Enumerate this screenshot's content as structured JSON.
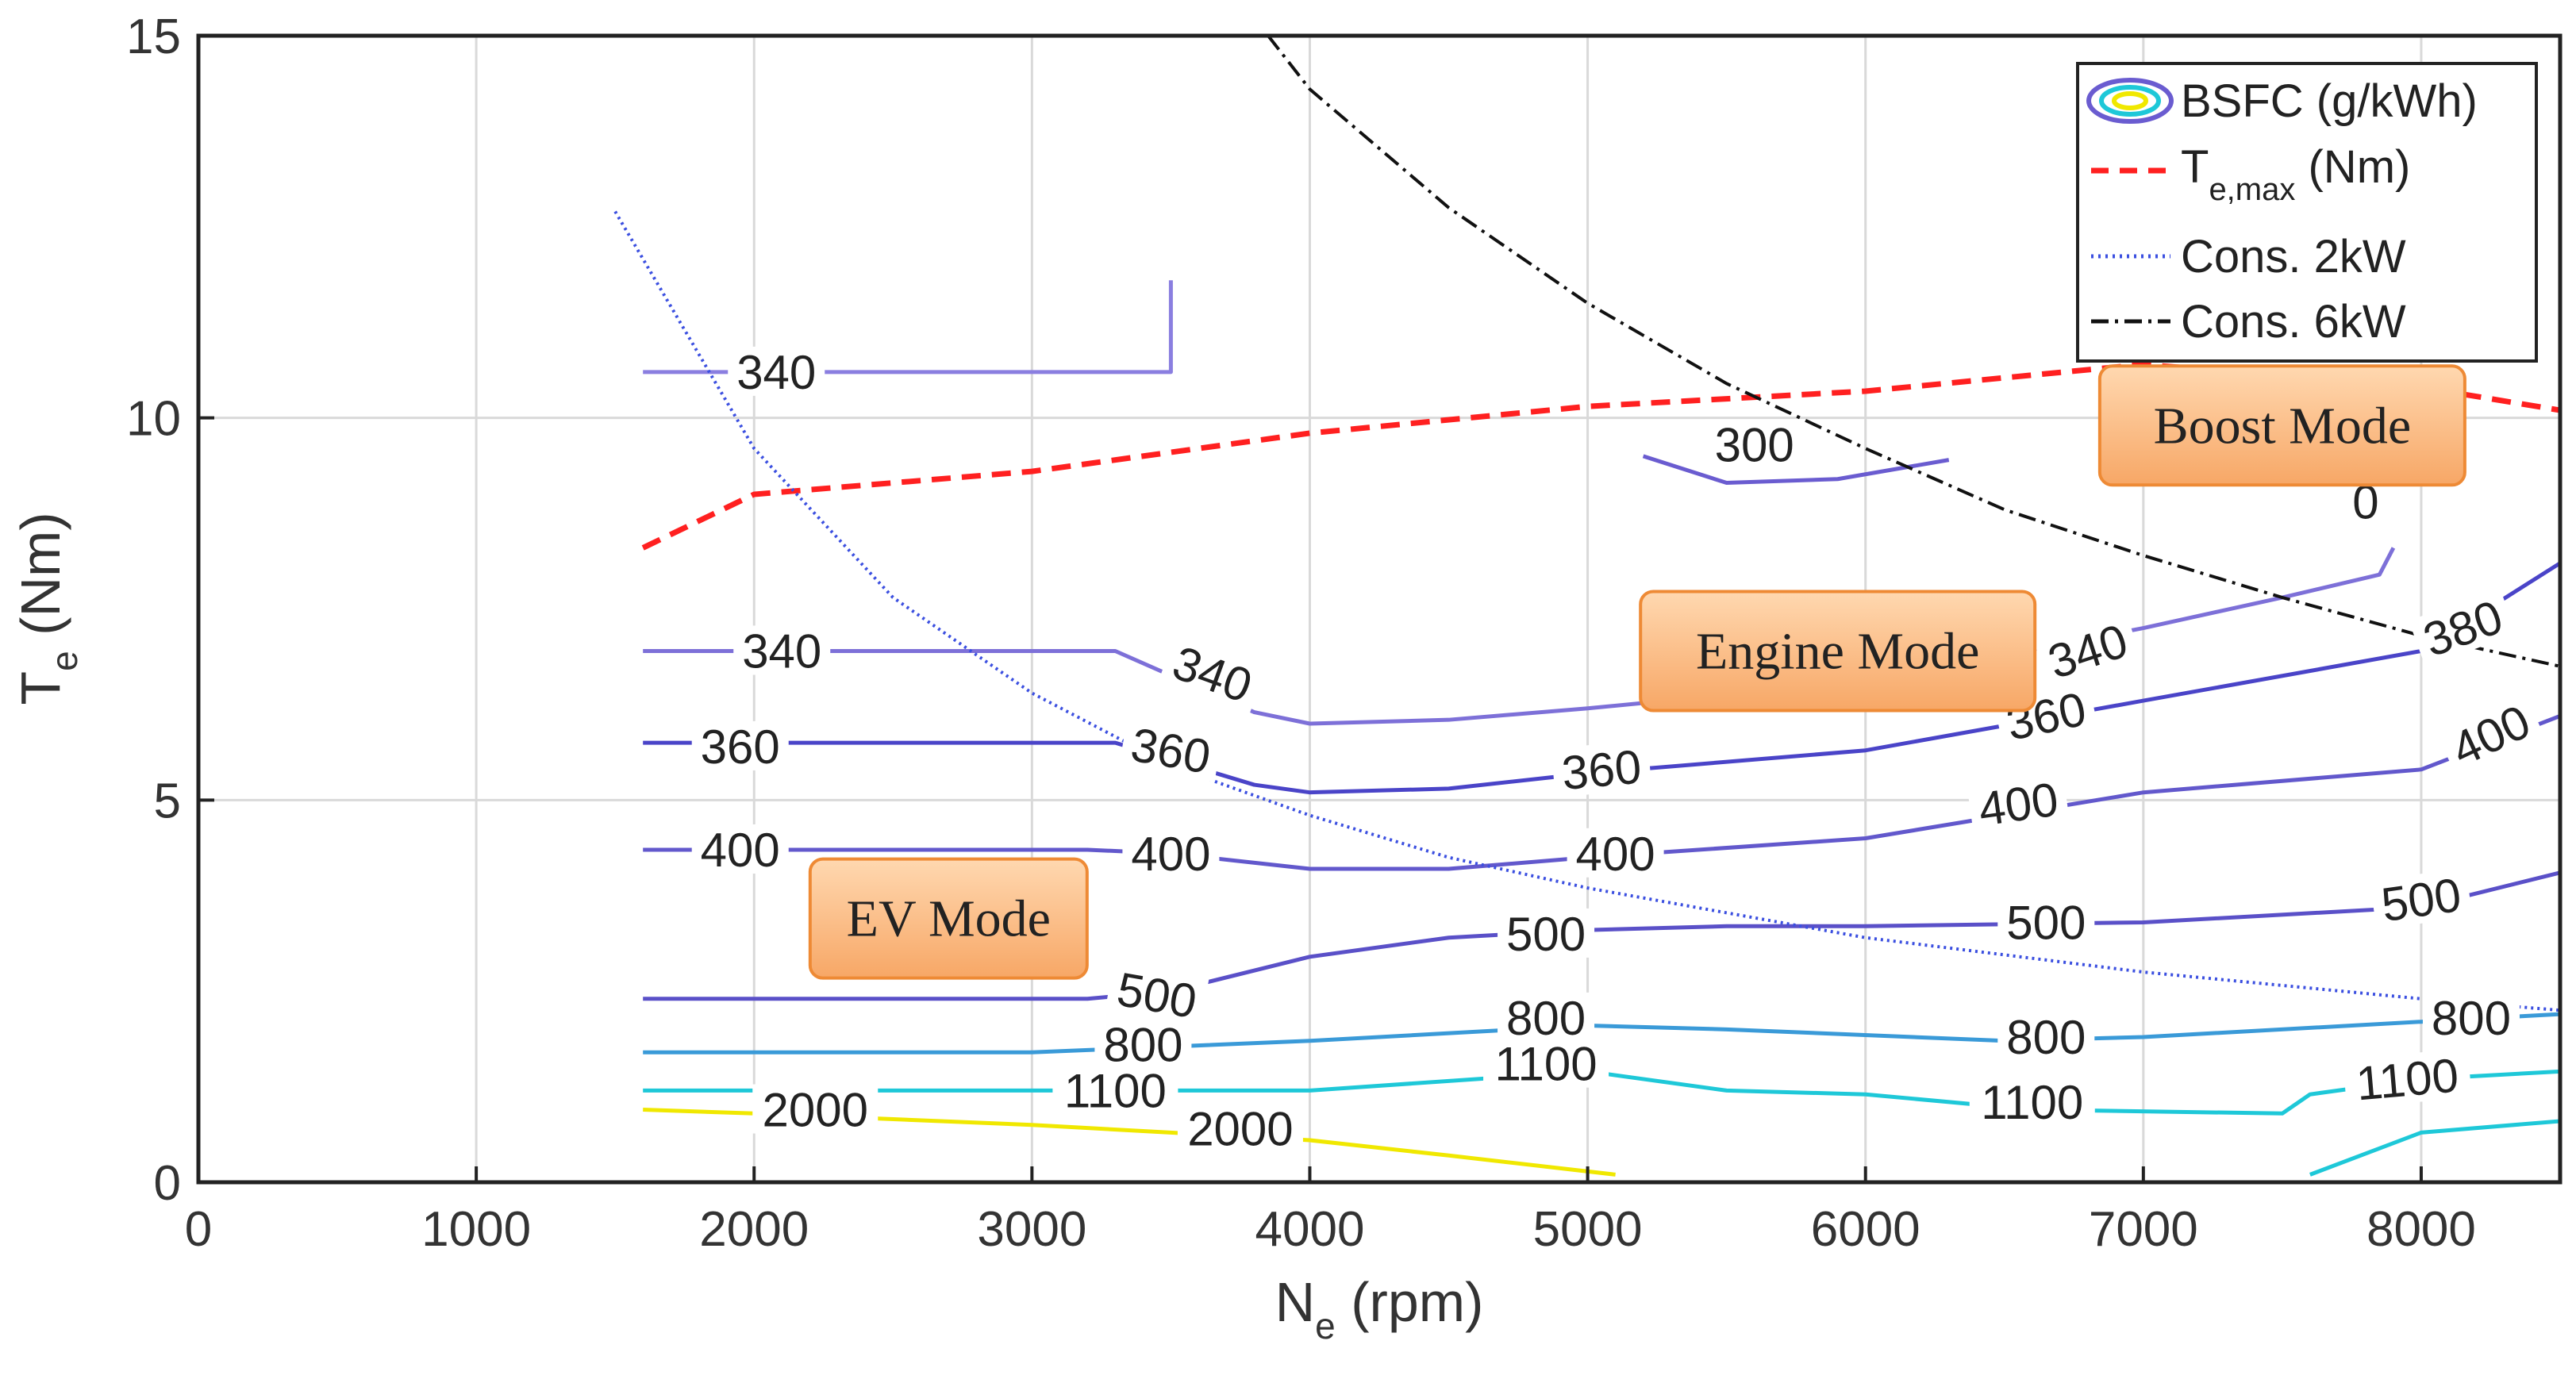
{
  "chart_data": {
    "type": "line",
    "title": "",
    "xlabel": "N",
    "xlabel_sub": "e",
    "xlabel_unit": " (rpm)",
    "ylabel": "T",
    "ylabel_sub": "e",
    "ylabel_unit": " (Nm)",
    "xlim": [
      0,
      8500
    ],
    "ylim": [
      0,
      15
    ],
    "x_ticks": [
      0,
      1000,
      2000,
      3000,
      4000,
      5000,
      6000,
      7000,
      8000
    ],
    "y_ticks": [
      0,
      5,
      10,
      15
    ],
    "grid": true,
    "legend": {
      "placement": "top-right",
      "entries": [
        {
          "name": "BSFC (g/kWh)",
          "style": "contour-ellipse"
        },
        {
          "name": "T",
          "sub": "e,max",
          "suffix": " (Nm)",
          "style": "red-dashed",
          "color": "#ff2020"
        },
        {
          "name": "Cons. 2kW",
          "style": "blue-dotted",
          "color": "#3b4fe0"
        },
        {
          "name": "Cons. 6kW",
          "style": "black-dashdot",
          "color": "#111111"
        }
      ]
    },
    "series": [
      {
        "name": "T_e,max (Nm)",
        "color": "#ff2020",
        "dash": "dashed",
        "x": [
          1600,
          2000,
          3000,
          4000,
          5000,
          6000,
          7000,
          8000,
          8500
        ],
        "y": [
          8.3,
          9.0,
          9.3,
          9.8,
          10.15,
          10.35,
          10.7,
          10.4,
          10.1
        ]
      },
      {
        "name": "Cons. 2kW",
        "color": "#3b4fe0",
        "dash": "dotted",
        "x": [
          1500,
          2000,
          2500,
          3000,
          3500,
          4000,
          4500,
          5000,
          6000,
          7000,
          8000,
          8500
        ],
        "y": [
          12.7,
          9.6,
          7.65,
          6.4,
          5.45,
          4.8,
          4.25,
          3.85,
          3.2,
          2.75,
          2.4,
          2.25
        ]
      },
      {
        "name": "Cons. 6kW",
        "color": "#111111",
        "dash": "dashdot",
        "x": [
          3850,
          4000,
          4500,
          5000,
          5500,
          6000,
          6500,
          7000,
          7500,
          8000,
          8500
        ],
        "y": [
          15.0,
          14.3,
          12.75,
          11.5,
          10.45,
          9.6,
          8.8,
          8.2,
          7.65,
          7.15,
          6.75
        ]
      }
    ],
    "contours": [
      {
        "level": "2000",
        "color": "#f0e800",
        "x": [
          1600,
          2000,
          3000,
          4000,
          4500,
          5100
        ],
        "y": [
          0.95,
          0.9,
          0.75,
          0.55,
          0.35,
          0.1
        ]
      },
      {
        "level": "1100",
        "color": "#1ec8d8",
        "x": [
          1600,
          4000,
          5000,
          5500,
          6000,
          6600,
          7500,
          7600,
          8000,
          8500
        ],
        "y": [
          1.2,
          1.2,
          1.45,
          1.2,
          1.15,
          0.95,
          0.9,
          1.15,
          1.35,
          1.45
        ]
      },
      {
        "level": "1100",
        "color": "#1ec8d8",
        "x": [
          7600,
          8000,
          8500
        ],
        "y": [
          0.1,
          0.65,
          0.8
        ]
      },
      {
        "level": "800",
        "color": "#3a9ad8",
        "x": [
          1600,
          3000,
          4000,
          5000,
          5500,
          6500,
          7000,
          8000,
          8500
        ],
        "y": [
          1.7,
          1.7,
          1.85,
          2.05,
          2.0,
          1.85,
          1.9,
          2.1,
          2.2
        ]
      },
      {
        "level": "500",
        "color": "#5a50c8",
        "x": [
          1600,
          3200,
          3500,
          4000,
          4500,
          5000,
          5500,
          6000,
          7000,
          8000,
          8500
        ],
        "y": [
          2.4,
          2.4,
          2.5,
          2.95,
          3.2,
          3.3,
          3.35,
          3.35,
          3.4,
          3.6,
          4.05
        ]
      },
      {
        "level": "400",
        "color": "#6258cc",
        "x": [
          1600,
          3200,
          3500,
          4000,
          4500,
          5000,
          6000,
          7000,
          8000,
          8500
        ],
        "y": [
          4.35,
          4.35,
          4.3,
          4.1,
          4.1,
          4.25,
          4.5,
          5.1,
          5.4,
          6.1
        ]
      },
      {
        "level": "360",
        "color": "#4a44c8",
        "x": [
          1600,
          3300,
          3800,
          4000,
          4500,
          5000,
          6000,
          7000,
          8000,
          8500
        ],
        "y": [
          5.75,
          5.75,
          5.2,
          5.1,
          5.15,
          5.35,
          5.65,
          6.3,
          6.95,
          8.1
        ]
      },
      {
        "level": "340",
        "color": "#7d70d8",
        "x": [
          1600,
          3300,
          3800,
          4000,
          4500,
          5000,
          6000,
          7000,
          7500,
          7850,
          7900
        ],
        "y": [
          6.95,
          6.95,
          6.15,
          6.0,
          6.05,
          6.2,
          6.55,
          7.25,
          7.65,
          7.95,
          8.3
        ]
      },
      {
        "level": "340",
        "color": "#8a7ee0",
        "x": [
          1600,
          3500,
          3500
        ],
        "y": [
          10.6,
          10.6,
          11.8
        ]
      },
      {
        "level": "300",
        "color": "#6a5cd0",
        "x": [
          5200,
          5500,
          5900,
          6300
        ],
        "y": [
          9.5,
          9.15,
          9.2,
          9.45
        ]
      }
    ],
    "contour_labels": [
      {
        "text": "340",
        "x": 2080,
        "y": 10.6,
        "rot": 0
      },
      {
        "text": "340",
        "x": 2100,
        "y": 6.95,
        "rot": 0
      },
      {
        "text": "340",
        "x": 3650,
        "y": 6.65,
        "rot": 20
      },
      {
        "text": "340",
        "x": 6800,
        "y": 6.95,
        "rot": -18
      },
      {
        "text": "360",
        "x": 1950,
        "y": 5.7,
        "rot": 0
      },
      {
        "text": "360",
        "x": 3500,
        "y": 5.65,
        "rot": 10
      },
      {
        "text": "360",
        "x": 5050,
        "y": 5.4,
        "rot": -5
      },
      {
        "text": "360",
        "x": 6650,
        "y": 6.1,
        "rot": -12
      },
      {
        "text": "380",
        "x": 8150,
        "y": 7.25,
        "rot": -20
      },
      {
        "text": "400",
        "x": 1950,
        "y": 4.35,
        "rot": 0
      },
      {
        "text": "400",
        "x": 3500,
        "y": 4.3,
        "rot": 0
      },
      {
        "text": "400",
        "x": 5100,
        "y": 4.3,
        "rot": 0
      },
      {
        "text": "400",
        "x": 6550,
        "y": 4.95,
        "rot": -8
      },
      {
        "text": "400",
        "x": 8250,
        "y": 5.85,
        "rot": -25
      },
      {
        "text": "500",
        "x": 3450,
        "y": 2.45,
        "rot": 10
      },
      {
        "text": "500",
        "x": 4850,
        "y": 3.25,
        "rot": 0
      },
      {
        "text": "500",
        "x": 6650,
        "y": 3.4,
        "rot": 0
      },
      {
        "text": "500",
        "x": 8000,
        "y": 3.7,
        "rot": -8
      },
      {
        "text": "800",
        "x": 3400,
        "y": 1.8,
        "rot": 0
      },
      {
        "text": "800",
        "x": 4850,
        "y": 2.15,
        "rot": 0
      },
      {
        "text": "800",
        "x": 6650,
        "y": 1.9,
        "rot": 0
      },
      {
        "text": "800",
        "x": 8180,
        "y": 2.15,
        "rot": 0
      },
      {
        "text": "1100",
        "x": 3300,
        "y": 1.2,
        "rot": 0
      },
      {
        "text": "1100",
        "x": 4850,
        "y": 1.55,
        "rot": 0
      },
      {
        "text": "1100",
        "x": 6600,
        "y": 1.05,
        "rot": 0
      },
      {
        "text": "1100",
        "x": 7950,
        "y": 1.35,
        "rot": -5
      },
      {
        "text": "2000",
        "x": 2220,
        "y": 0.95,
        "rot": 0
      },
      {
        "text": "2000",
        "x": 3750,
        "y": 0.7,
        "rot": 0
      },
      {
        "text": "300",
        "x": 5600,
        "y": 9.65,
        "rot": 0
      },
      {
        "text": "0",
        "x": 7800,
        "y": 8.9,
        "rot": 0
      }
    ],
    "annotations": [
      {
        "text": "EV Mode",
        "x": 2700,
        "y": 3.45
      },
      {
        "text": "Engine Mode",
        "x": 5900,
        "y": 6.95
      },
      {
        "text": "Boost Mode",
        "x": 7500,
        "y": 9.9
      }
    ]
  }
}
